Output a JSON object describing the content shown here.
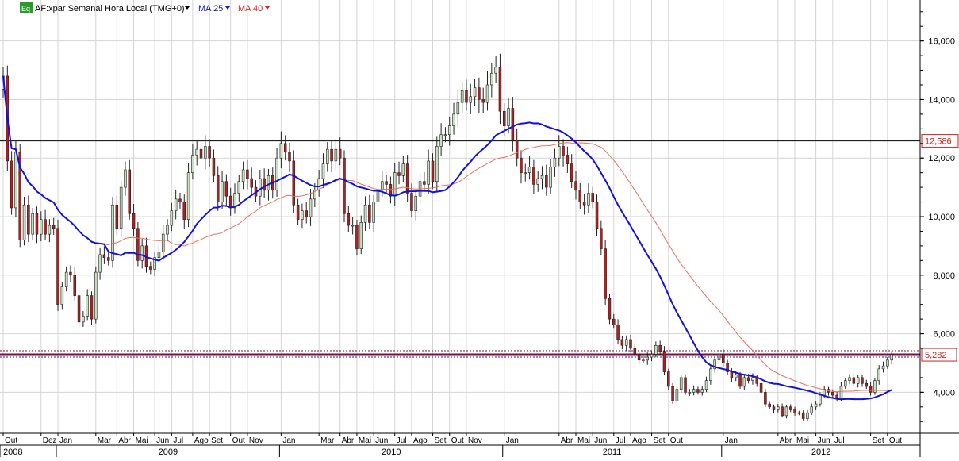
{
  "header": {
    "eq_badge": "Eq",
    "symbol": "AF:xpar Semanal Hora Local (TMG+0)",
    "ma25_label": "MA 25",
    "ma40_label": "MA 40"
  },
  "colors": {
    "up_candle": "#c8e0c0",
    "down_candle": "#b02020",
    "wick": "#222222",
    "ma25": "#1010e0",
    "ma40": "#e87060",
    "grid": "#d4d4d4",
    "price_line": "#7a1040",
    "eq_badge_bg": "#2a9a2a"
  },
  "chart_data": {
    "type": "candlestick",
    "ylim": [
      2600,
      17400
    ],
    "y_ticks": [
      "4,000",
      "6,000",
      "8,000",
      "10,000",
      "12,000",
      "14,000",
      "16,000"
    ],
    "y_tick_values": [
      4000,
      6000,
      8000,
      10000,
      12000,
      14000,
      16000
    ],
    "reference_line": {
      "value": 12586,
      "label": "12,586"
    },
    "current_price": {
      "value": 5282,
      "label": "5,282"
    },
    "x_ticks": [
      "Out",
      "Dez",
      "Jan",
      "Mar",
      "Abr",
      "Mai",
      "Jun",
      "Jul",
      "Ago",
      "Set",
      "Out",
      "Nov",
      "Jan",
      "Mar",
      "Abr",
      "Mai",
      "Jun",
      "Jul",
      "Ago",
      "Set",
      "Out",
      "Nov",
      "Jan",
      "Abr",
      "Mai",
      "Jun",
      "Jul",
      "Ago",
      "Set",
      "Out",
      "Jan",
      "Abr",
      "Mai",
      "Jun",
      "Jul",
      "Set",
      "Out"
    ],
    "x_tick_weeks": [
      0,
      9,
      13,
      22,
      27,
      31,
      36,
      40,
      45,
      49,
      54,
      58,
      66,
      75,
      80,
      84,
      88,
      93,
      97,
      102,
      106,
      110,
      119,
      132,
      136,
      140,
      145,
      149,
      154,
      158,
      171,
      184,
      188,
      193,
      197,
      206,
      210
    ],
    "years": [
      "2008",
      "2009",
      "2010",
      "2011",
      "2012"
    ],
    "year_weeks": [
      0,
      13,
      66,
      119,
      171
    ],
    "total_weeks": 218,
    "weekly_close": [
      14800,
      11900,
      10300,
      12200,
      9200,
      10400,
      9400,
      10100,
      9400,
      9900,
      9400,
      9700,
      9600,
      7000,
      7600,
      8100,
      8000,
      7300,
      6400,
      6600,
      7300,
      6500,
      8100,
      8700,
      8600,
      8500,
      10400,
      9600,
      11000,
      11600,
      10100,
      9600,
      8500,
      9000,
      8300,
      8200,
      8600,
      8800,
      9400,
      9700,
      10200,
      10600,
      10500,
      9900,
      11500,
      12100,
      12300,
      12000,
      12400,
      12000,
      11400,
      10500,
      11200,
      10700,
      10300,
      10800,
      11200,
      11600,
      11300,
      11000,
      10700,
      11300,
      10900,
      11400,
      10900,
      12000,
      12500,
      12200,
      11900,
      10400,
      9900,
      10200,
      10000,
      10600,
      10900,
      11300,
      11800,
      12300,
      11900,
      12300,
      12000,
      10100,
      9700,
      9700,
      8900,
      9800,
      10400,
      9800,
      10500,
      10900,
      11200,
      11100,
      10700,
      11500,
      11400,
      11800,
      10800,
      10200,
      10700,
      11200,
      11100,
      11900,
      11200,
      12400,
      12800,
      12800,
      13100,
      13500,
      13900,
      14300,
      13900,
      14100,
      14400,
      14000,
      13900,
      14500,
      14900,
      15100,
      13600,
      13100,
      13700,
      12600,
      12000,
      11500,
      11500,
      11700,
      11100,
      11300,
      11400,
      11000,
      11700,
      12000,
      12400,
      12100,
      11800,
      11200,
      10900,
      10500,
      10400,
      10800,
      10500,
      9600,
      8900,
      7200,
      6500,
      6300,
      5800,
      5600,
      5800,
      5500,
      5300,
      5100,
      5100,
      5200,
      5300,
      5600,
      5400,
      4700,
      4200,
      3700,
      4100,
      4500,
      4000,
      4000,
      4100,
      4000,
      4100,
      4400,
      4800,
      5100,
      5300,
      5000,
      4700,
      4500,
      4600,
      4200,
      4500,
      4400,
      4500,
      4300,
      4000,
      3600,
      3500,
      3400,
      3500,
      3200,
      3500,
      3400,
      3300,
      3300,
      3100,
      3300,
      3500,
      3600,
      3900,
      4100,
      4000,
      3900,
      3800,
      4200,
      4400,
      4500,
      4300,
      4500,
      4300,
      4200,
      4000,
      4400,
      4800,
      4900,
      5100,
      5282
    ]
  }
}
